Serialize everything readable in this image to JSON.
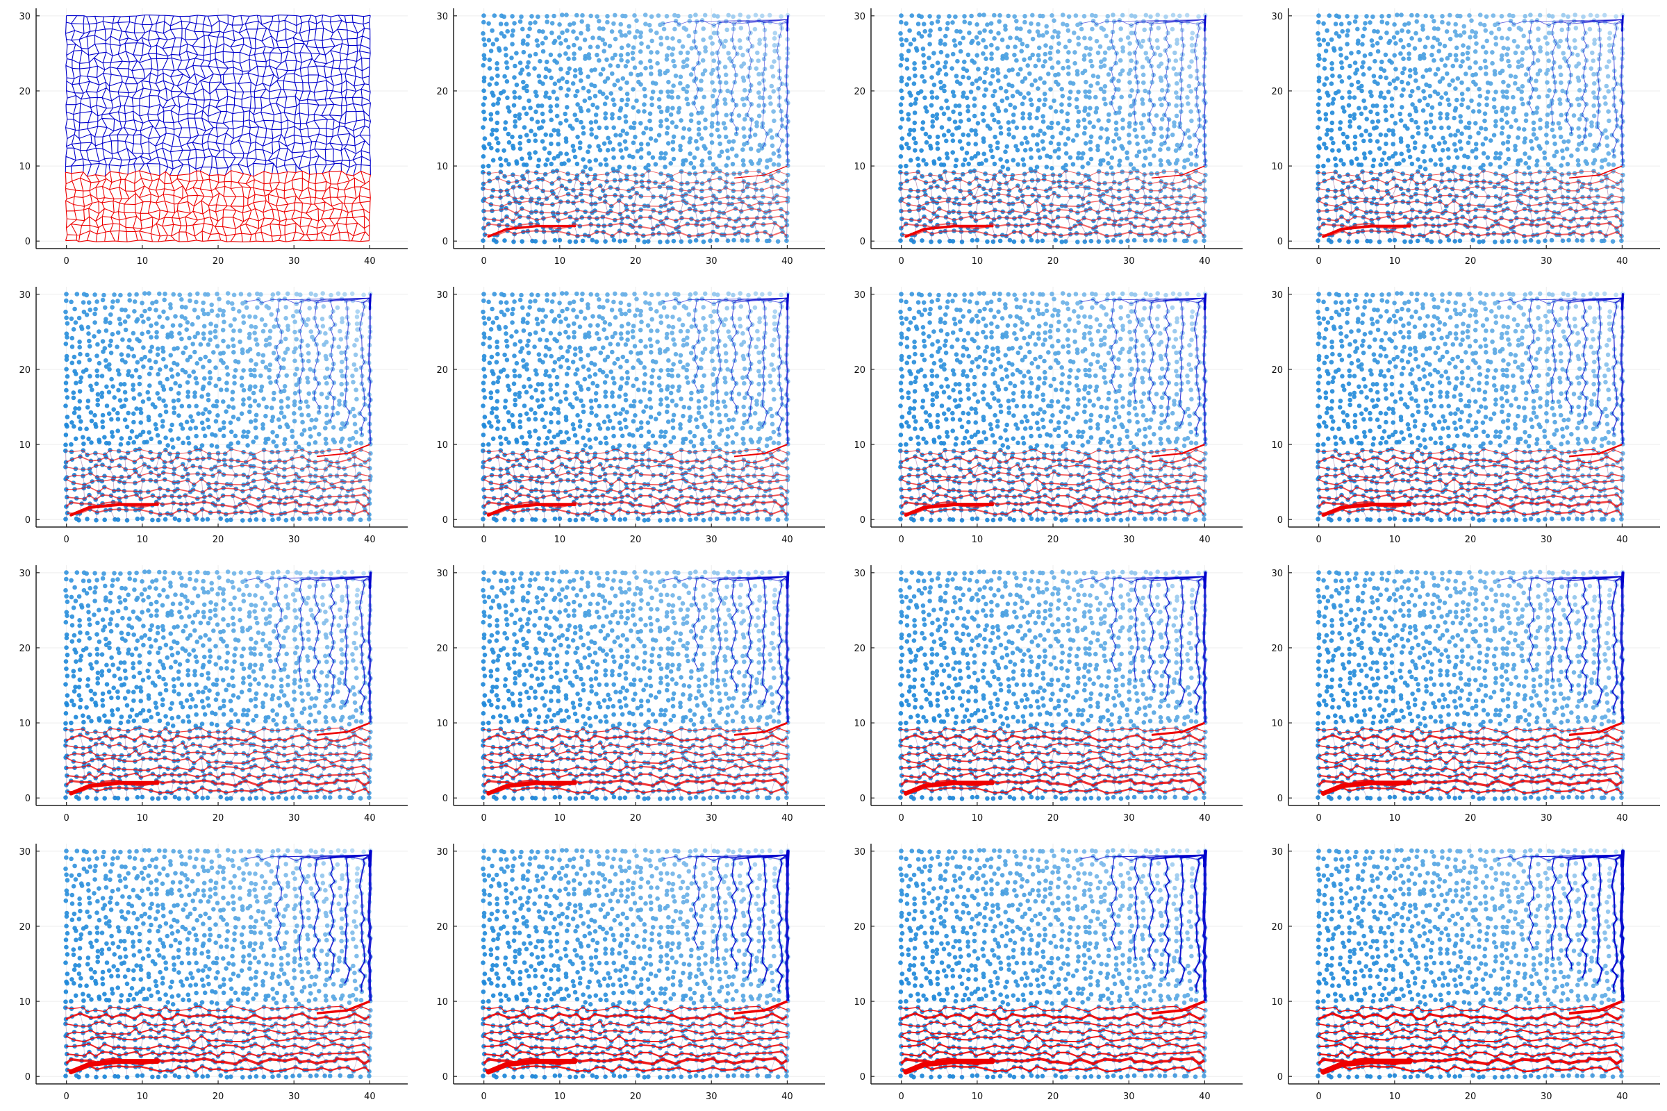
{
  "figure": {
    "layout": "4x4 grid of panels",
    "colors": {
      "blue_network": "#0000cc",
      "red_network": "#ee0000",
      "node_dark": "#1a86d8",
      "node_light": "#d6eafa",
      "grid": "#eeeeee",
      "axis": "#222222"
    }
  },
  "chart_data": [
    {
      "type": "network-grid",
      "panel": 1,
      "title": "",
      "xlabel": "",
      "ylabel": "",
      "xlim": [
        -4,
        45
      ],
      "ylim": [
        -1,
        31
      ],
      "xticks": [
        0,
        10,
        20,
        30,
        40
      ],
      "yticks": [
        0,
        10,
        20,
        30
      ],
      "grid": true,
      "regions": [
        {
          "name": "",
          "color": "#ee0000",
          "y": [
            0,
            10
          ]
        },
        {
          "name": "",
          "color": "#0000cc",
          "y": [
            10,
            30
          ]
        }
      ],
      "sources": [],
      "flow": 0
    },
    {
      "type": "network-scatter",
      "panel": 2,
      "title": "",
      "xlabel": "",
      "ylabel": "",
      "xlim": [
        -4,
        45
      ],
      "ylim": [
        -1,
        31
      ],
      "xticks": [
        0,
        10,
        20,
        30,
        40
      ],
      "yticks": [
        0,
        10,
        20,
        30
      ],
      "grid": true,
      "sources": [
        {
          "color": "#0000cc",
          "x": 40,
          "y": 30
        },
        {
          "color": "#ee0000",
          "x": 0.5,
          "y": 0.5
        }
      ],
      "flow": 1
    },
    {
      "type": "network-scatter",
      "panel": 3,
      "title": "",
      "xlabel": "",
      "ylabel": "",
      "xlim": [
        -4,
        45
      ],
      "ylim": [
        -1,
        31
      ],
      "xticks": [
        0,
        10,
        20,
        30,
        40
      ],
      "yticks": [
        0,
        10,
        20,
        30
      ],
      "grid": true,
      "sources": [
        {
          "color": "#0000cc",
          "x": 40,
          "y": 30
        },
        {
          "color": "#ee0000",
          "x": 0.5,
          "y": 0.5
        }
      ],
      "flow": 2
    },
    {
      "type": "network-scatter",
      "panel": 4,
      "title": "",
      "xlabel": "",
      "ylabel": "",
      "xlim": [
        -4,
        45
      ],
      "ylim": [
        -1,
        31
      ],
      "xticks": [
        0,
        10,
        20,
        30,
        40
      ],
      "yticks": [
        0,
        10,
        20,
        30
      ],
      "grid": true,
      "sources": [
        {
          "color": "#0000cc",
          "x": 40,
          "y": 30
        },
        {
          "color": "#ee0000",
          "x": 0.5,
          "y": 0.5
        }
      ],
      "flow": 3
    },
    {
      "type": "network-scatter",
      "panel": 5,
      "title": "",
      "xlabel": "",
      "ylabel": "",
      "xlim": [
        -4,
        45
      ],
      "ylim": [
        -1,
        31
      ],
      "xticks": [
        0,
        10,
        20,
        30,
        40
      ],
      "yticks": [
        0,
        10,
        20,
        30
      ],
      "grid": true,
      "sources": [
        {
          "color": "#0000cc",
          "x": 40,
          "y": 30
        },
        {
          "color": "#ee0000",
          "x": 0.5,
          "y": 0.5
        }
      ],
      "flow": 4
    },
    {
      "type": "network-scatter",
      "panel": 6,
      "title": "",
      "xlabel": "",
      "ylabel": "",
      "xlim": [
        -4,
        45
      ],
      "ylim": [
        -1,
        31
      ],
      "xticks": [
        0,
        10,
        20,
        30,
        40
      ],
      "yticks": [
        0,
        10,
        20,
        30
      ],
      "grid": true,
      "sources": [
        {
          "color": "#0000cc",
          "x": 40,
          "y": 30
        },
        {
          "color": "#ee0000",
          "x": 0.5,
          "y": 0.5
        }
      ],
      "flow": 5
    },
    {
      "type": "network-scatter",
      "panel": 7,
      "title": "",
      "xlabel": "",
      "ylabel": "",
      "xlim": [
        -4,
        45
      ],
      "ylim": [
        -1,
        31
      ],
      "xticks": [
        0,
        10,
        20,
        30,
        40
      ],
      "yticks": [
        0,
        10,
        20,
        30
      ],
      "grid": true,
      "sources": [
        {
          "color": "#0000cc",
          "x": 40,
          "y": 30
        },
        {
          "color": "#ee0000",
          "x": 0.5,
          "y": 0.5
        }
      ],
      "flow": 6
    },
    {
      "type": "network-scatter",
      "panel": 8,
      "title": "",
      "xlabel": "",
      "ylabel": "",
      "xlim": [
        -4,
        45
      ],
      "ylim": [
        -1,
        31
      ],
      "xticks": [
        0,
        10,
        20,
        30,
        40
      ],
      "yticks": [
        0,
        10,
        20,
        30
      ],
      "grid": true,
      "sources": [
        {
          "color": "#0000cc",
          "x": 40,
          "y": 30
        },
        {
          "color": "#ee0000",
          "x": 0.5,
          "y": 0.5
        }
      ],
      "flow": 7
    },
    {
      "type": "network-scatter",
      "panel": 9,
      "title": "",
      "xlabel": "",
      "ylabel": "",
      "xlim": [
        -4,
        45
      ],
      "ylim": [
        -1,
        31
      ],
      "xticks": [
        0,
        10,
        20,
        30,
        40
      ],
      "yticks": [
        0,
        10,
        20,
        30
      ],
      "grid": true,
      "sources": [
        {
          "color": "#0000cc",
          "x": 40,
          "y": 30
        },
        {
          "color": "#ee0000",
          "x": 0.5,
          "y": 0.5
        }
      ],
      "flow": 8
    },
    {
      "type": "network-scatter",
      "panel": 10,
      "title": "",
      "xlabel": "",
      "ylabel": "",
      "xlim": [
        -4,
        45
      ],
      "ylim": [
        -1,
        31
      ],
      "xticks": [
        0,
        10,
        20,
        30,
        40
      ],
      "yticks": [
        0,
        10,
        20,
        30
      ],
      "grid": true,
      "sources": [
        {
          "color": "#0000cc",
          "x": 40,
          "y": 30
        },
        {
          "color": "#ee0000",
          "x": 0.5,
          "y": 0.5
        }
      ],
      "flow": 9
    },
    {
      "type": "network-scatter",
      "panel": 11,
      "title": "",
      "xlabel": "",
      "ylabel": "",
      "xlim": [
        -4,
        45
      ],
      "ylim": [
        -1,
        31
      ],
      "xticks": [
        0,
        10,
        20,
        30,
        40
      ],
      "yticks": [
        0,
        10,
        20,
        30
      ],
      "grid": true,
      "sources": [
        {
          "color": "#0000cc",
          "x": 40,
          "y": 30
        },
        {
          "color": "#ee0000",
          "x": 0.5,
          "y": 0.5
        }
      ],
      "flow": 10
    },
    {
      "type": "network-scatter",
      "panel": 12,
      "title": "",
      "xlabel": "",
      "ylabel": "",
      "xlim": [
        -4,
        45
      ],
      "ylim": [
        -1,
        31
      ],
      "xticks": [
        0,
        10,
        20,
        30,
        40
      ],
      "yticks": [
        0,
        10,
        20,
        30
      ],
      "grid": true,
      "sources": [
        {
          "color": "#0000cc",
          "x": 40,
          "y": 30
        },
        {
          "color": "#ee0000",
          "x": 0.5,
          "y": 0.5
        }
      ],
      "flow": 11
    },
    {
      "type": "network-scatter",
      "panel": 13,
      "title": "",
      "xlabel": "",
      "ylabel": "",
      "xlim": [
        -4,
        45
      ],
      "ylim": [
        -1,
        31
      ],
      "xticks": [
        0,
        10,
        20,
        30,
        40
      ],
      "yticks": [
        0,
        10,
        20,
        30
      ],
      "grid": true,
      "sources": [
        {
          "color": "#0000cc",
          "x": 40,
          "y": 30
        },
        {
          "color": "#ee0000",
          "x": 0.5,
          "y": 0.5
        }
      ],
      "flow": 12
    },
    {
      "type": "network-scatter",
      "panel": 14,
      "title": "",
      "xlabel": "",
      "ylabel": "",
      "xlim": [
        -4,
        45
      ],
      "ylim": [
        -1,
        31
      ],
      "xticks": [
        0,
        10,
        20,
        30,
        40
      ],
      "yticks": [
        0,
        10,
        20,
        30
      ],
      "grid": true,
      "sources": [
        {
          "color": "#0000cc",
          "x": 40,
          "y": 30
        },
        {
          "color": "#ee0000",
          "x": 0.5,
          "y": 0.5
        }
      ],
      "flow": 13
    },
    {
      "type": "network-scatter",
      "panel": 15,
      "title": "",
      "xlabel": "",
      "ylabel": "",
      "xlim": [
        -4,
        45
      ],
      "ylim": [
        -1,
        31
      ],
      "xticks": [
        0,
        10,
        20,
        30,
        40
      ],
      "yticks": [
        0,
        10,
        20,
        30
      ],
      "grid": true,
      "sources": [
        {
          "color": "#0000cc",
          "x": 40,
          "y": 30
        },
        {
          "color": "#ee0000",
          "x": 0.5,
          "y": 0.5
        }
      ],
      "flow": 14
    },
    {
      "type": "network-scatter",
      "panel": 16,
      "title": "",
      "xlabel": "",
      "ylabel": "",
      "xlim": [
        -4,
        45
      ],
      "ylim": [
        -1,
        31
      ],
      "xticks": [
        0,
        10,
        20,
        30,
        40
      ],
      "yticks": [
        0,
        10,
        20,
        30
      ],
      "grid": true,
      "sources": [
        {
          "color": "#0000cc",
          "x": 40,
          "y": 30
        },
        {
          "color": "#ee0000",
          "x": 0.5,
          "y": 0.5
        }
      ],
      "flow": 15
    }
  ]
}
